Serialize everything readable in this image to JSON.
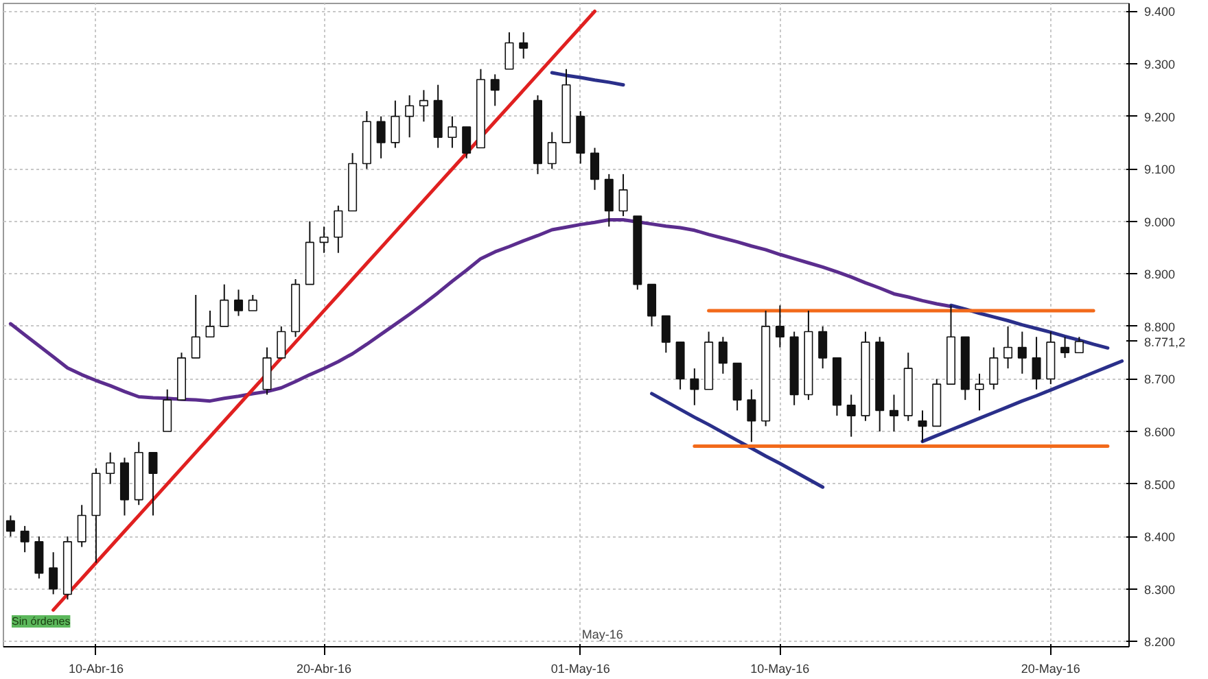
{
  "chart_data": {
    "type": "candlestick",
    "categories": [
      null,
      null,
      null,
      null,
      null,
      null,
      "10-Abr-16",
      null,
      null,
      null,
      null,
      null,
      null,
      null,
      null,
      null,
      null,
      null,
      null,
      null,
      null,
      null,
      "20-Abr-16",
      null,
      null,
      null,
      null,
      null,
      null,
      null,
      null,
      null,
      null,
      null,
      null,
      null,
      null,
      null,
      null,
      null,
      "01-May-16",
      null,
      null,
      null,
      null,
      null,
      null,
      null,
      null,
      null,
      null,
      null,
      null,
      null,
      "10-May-16",
      null,
      null,
      null,
      null,
      null,
      null,
      null,
      null,
      null,
      null,
      null,
      null,
      null,
      null,
      null,
      null,
      null,
      null,
      "20-May-16",
      null,
      null,
      null,
      null,
      null
    ],
    "ohlc": [
      [
        8430,
        8440,
        8400,
        8410
      ],
      [
        8410,
        8420,
        8370,
        8390
      ],
      [
        8390,
        8400,
        8320,
        8330
      ],
      [
        8340,
        8370,
        8290,
        8300
      ],
      [
        8290,
        8400,
        8280,
        8390
      ],
      [
        8390,
        8460,
        8380,
        8440
      ],
      [
        8440,
        8530,
        8350,
        8520
      ],
      [
        8520,
        8560,
        8500,
        8540
      ],
      [
        8540,
        8550,
        8440,
        8470
      ],
      [
        8470,
        8580,
        8460,
        8560
      ],
      [
        8560,
        8560,
        8440,
        8520
      ],
      [
        8600,
        8680,
        8600,
        8660
      ],
      [
        8660,
        8750,
        8660,
        8740
      ],
      [
        8740,
        8860,
        8740,
        8780
      ],
      [
        8780,
        8830,
        8780,
        8800
      ],
      [
        8800,
        8880,
        8800,
        8850
      ],
      [
        8850,
        8870,
        8820,
        8830
      ],
      [
        8830,
        8860,
        8830,
        8850
      ],
      [
        8680,
        8760,
        8670,
        8740
      ],
      [
        8740,
        8800,
        8740,
        8790
      ],
      [
        8790,
        8890,
        8780,
        8880
      ],
      [
        8880,
        9000,
        8880,
        8960
      ],
      [
        8960,
        8990,
        8940,
        8970
      ],
      [
        8970,
        9030,
        8940,
        9020
      ],
      [
        9020,
        9130,
        9020,
        9110
      ],
      [
        9110,
        9210,
        9100,
        9190
      ],
      [
        9190,
        9200,
        9120,
        9150
      ],
      [
        9150,
        9230,
        9140,
        9200
      ],
      [
        9200,
        9240,
        9160,
        9220
      ],
      [
        9220,
        9250,
        9190,
        9230
      ],
      [
        9230,
        9260,
        9140,
        9160
      ],
      [
        9160,
        9200,
        9140,
        9180
      ],
      [
        9180,
        9180,
        9120,
        9130
      ],
      [
        9140,
        9290,
        9140,
        9270
      ],
      [
        9270,
        9280,
        9220,
        9250
      ],
      [
        9290,
        9360,
        9290,
        9340
      ],
      [
        9340,
        9360,
        9310,
        9330
      ],
      [
        9230,
        9240,
        9090,
        9110
      ],
      [
        9110,
        9170,
        9100,
        9150
      ],
      [
        9150,
        9290,
        9150,
        9260
      ],
      [
        9200,
        9210,
        9110,
        9130
      ],
      [
        9130,
        9140,
        9060,
        9080
      ],
      [
        9080,
        9090,
        8990,
        9020
      ],
      [
        9020,
        9090,
        9010,
        9060
      ],
      [
        9010,
        9010,
        8870,
        8880
      ],
      [
        8880,
        8880,
        8800,
        8820
      ],
      [
        8820,
        8820,
        8750,
        8770
      ],
      [
        8770,
        8770,
        8680,
        8700
      ],
      [
        8700,
        8720,
        8650,
        8680
      ],
      [
        8680,
        8790,
        8680,
        8770
      ],
      [
        8770,
        8780,
        8710,
        8730
      ],
      [
        8730,
        8730,
        8640,
        8660
      ],
      [
        8660,
        8680,
        8580,
        8620
      ],
      [
        8620,
        8830,
        8610,
        8800
      ],
      [
        8800,
        8840,
        8760,
        8780
      ],
      [
        8780,
        8790,
        8650,
        8670
      ],
      [
        8670,
        8830,
        8660,
        8790
      ],
      [
        8790,
        8800,
        8720,
        8740
      ],
      [
        8740,
        8740,
        8630,
        8650
      ],
      [
        8650,
        8670,
        8590,
        8630
      ],
      [
        8630,
        8790,
        8620,
        8770
      ],
      [
        8770,
        8780,
        8600,
        8640
      ],
      [
        8640,
        8670,
        8600,
        8630
      ],
      [
        8630,
        8750,
        8620,
        8720
      ],
      [
        8620,
        8640,
        8580,
        8610
      ],
      [
        8610,
        8700,
        8610,
        8690
      ],
      [
        8690,
        8840,
        8690,
        8780
      ],
      [
        8780,
        8780,
        8660,
        8680
      ],
      [
        8680,
        8710,
        8640,
        8690
      ],
      [
        8690,
        8760,
        8680,
        8740
      ],
      [
        8740,
        8800,
        8720,
        8760
      ],
      [
        8760,
        8790,
        8710,
        8740
      ],
      [
        8740,
        8780,
        8680,
        8700
      ],
      [
        8700,
        8790,
        8690,
        8770
      ],
      [
        8760,
        8780,
        8740,
        8750
      ],
      [
        8750,
        8780,
        8750,
        8771.2
      ],
      null,
      null,
      null
    ],
    "series": [
      {
        "type": "line",
        "color": "#5b2d8e",
        "values": [
          8805,
          8784,
          8763,
          8742,
          8721,
          8708,
          8697,
          8687,
          8676,
          8666,
          8664,
          8663,
          8661,
          8660,
          8658,
          8663,
          8667,
          8672,
          8676,
          8683,
          8695,
          8708,
          8720,
          8733,
          8748,
          8766,
          8785,
          8804,
          8823,
          8843,
          8864,
          8886,
          8907,
          8929,
          8942,
          8952,
          8963,
          8973,
          8984,
          8989,
          8994,
          8998,
          9003,
          9003,
          8999,
          8995,
          8991,
          8988,
          8983,
          8975,
          8968,
          8961,
          8953,
          8946,
          8937,
          8929,
          8921,
          8913,
          8904,
          8894,
          8883,
          8873,
          8862,
          8856,
          8849,
          8843,
          8838,
          null,
          null,
          null,
          null,
          null,
          null,
          null,
          null,
          null,
          null,
          null,
          null
        ]
      },
      {
        "type": "line",
        "color": "#e02020",
        "values": [
          null,
          null,
          null,
          8260,
          8290,
          8320,
          8350,
          8380,
          8410,
          8440,
          8470,
          8500,
          8530,
          8560,
          8590,
          8620,
          8650,
          8680,
          8710,
          8740,
          8770,
          8800,
          8830,
          8860,
          8890,
          8920,
          8950,
          8980,
          9010,
          9040,
          9070,
          9100,
          9130,
          9160,
          9190,
          9220,
          9250,
          9280,
          9310,
          9340,
          9370,
          9400,
          null,
          null,
          null,
          null,
          null,
          null,
          null,
          null,
          null,
          null,
          null,
          null,
          null,
          null,
          null,
          null,
          null,
          null,
          null,
          null,
          null,
          null,
          null,
          null,
          null,
          null,
          null,
          null,
          null,
          null,
          null,
          null,
          null,
          null,
          null,
          null,
          null
        ]
      },
      {
        "type": "line",
        "color": "#2a2f8a",
        "values": [
          null,
          null,
          null,
          null,
          null,
          null,
          null,
          null,
          null,
          null,
          null,
          null,
          null,
          null,
          null,
          null,
          null,
          null,
          null,
          null,
          null,
          null,
          null,
          null,
          null,
          null,
          null,
          null,
          null,
          null,
          null,
          null,
          null,
          null,
          null,
          null,
          null,
          null,
          9283,
          9278,
          9274,
          9269,
          9265,
          9260,
          null,
          null,
          null,
          null,
          null,
          null,
          null,
          null,
          null,
          null,
          null,
          null,
          null,
          null,
          null,
          null,
          null,
          null,
          null,
          null,
          null,
          null,
          null,
          null,
          null,
          null,
          null,
          null,
          null,
          null,
          null,
          null,
          null,
          null,
          null
        ]
      },
      {
        "type": "line",
        "color": "#2a2f8a",
        "values": [
          null,
          null,
          null,
          null,
          null,
          null,
          null,
          null,
          null,
          null,
          null,
          null,
          null,
          null,
          null,
          null,
          null,
          null,
          null,
          null,
          null,
          null,
          null,
          null,
          null,
          null,
          null,
          null,
          null,
          null,
          null,
          null,
          null,
          null,
          null,
          null,
          null,
          null,
          null,
          null,
          null,
          null,
          null,
          null,
          null,
          8672,
          8657,
          8642,
          8627,
          8613,
          8598,
          8583,
          8568,
          8553,
          8539,
          8524,
          8509,
          8494,
          null,
          null,
          null,
          null,
          null,
          null,
          null,
          null,
          null,
          null,
          null,
          null,
          null,
          null,
          null,
          null,
          null,
          null,
          null,
          null,
          null
        ]
      },
      {
        "type": "line",
        "color": "#2a2f8a",
        "values": [
          null,
          null,
          null,
          null,
          null,
          null,
          null,
          null,
          null,
          null,
          null,
          null,
          null,
          null,
          null,
          null,
          null,
          null,
          null,
          null,
          null,
          null,
          null,
          null,
          null,
          null,
          null,
          null,
          null,
          null,
          null,
          null,
          null,
          null,
          null,
          null,
          null,
          null,
          null,
          null,
          null,
          null,
          null,
          null,
          null,
          null,
          null,
          null,
          null,
          null,
          null,
          null,
          null,
          null,
          null,
          null,
          null,
          null,
          null,
          null,
          null,
          null,
          null,
          null,
          null,
          null,
          8840,
          8833,
          8825,
          8818,
          8811,
          8803,
          8796,
          8789,
          8781,
          8774,
          8766,
          8759,
          null
        ]
      },
      {
        "type": "line",
        "color": "#2a2f8a",
        "values": [
          null,
          null,
          null,
          null,
          null,
          null,
          null,
          null,
          null,
          null,
          null,
          null,
          null,
          null,
          null,
          null,
          null,
          null,
          null,
          null,
          null,
          null,
          null,
          null,
          null,
          null,
          null,
          null,
          null,
          null,
          null,
          null,
          null,
          null,
          null,
          null,
          null,
          null,
          null,
          null,
          null,
          null,
          null,
          null,
          null,
          null,
          null,
          null,
          null,
          null,
          null,
          null,
          null,
          null,
          null,
          null,
          null,
          null,
          null,
          null,
          null,
          null,
          null,
          null,
          8581,
          8592,
          8603,
          8614,
          8625,
          8636,
          8647,
          8658,
          8668,
          8679,
          8690,
          8701,
          8712,
          8723,
          8734
        ]
      },
      {
        "type": "line",
        "color": "#f26a1b",
        "values": [
          null,
          null,
          null,
          null,
          null,
          null,
          null,
          null,
          null,
          null,
          null,
          null,
          null,
          null,
          null,
          null,
          null,
          null,
          null,
          null,
          null,
          null,
          null,
          null,
          null,
          null,
          null,
          null,
          null,
          null,
          null,
          null,
          null,
          null,
          null,
          null,
          null,
          null,
          null,
          null,
          null,
          null,
          null,
          null,
          null,
          null,
          null,
          null,
          null,
          8830,
          8830,
          8830,
          8830,
          8830,
          8830,
          8830,
          8830,
          8830,
          8830,
          8830,
          8830,
          8830,
          8830,
          8830,
          8830,
          8830,
          8830,
          8830,
          8830,
          8830,
          8830,
          8830,
          8830,
          8830,
          8830,
          8830,
          8830,
          null,
          null
        ]
      },
      {
        "type": "line",
        "color": "#f26a1b",
        "values": [
          null,
          null,
          null,
          null,
          null,
          null,
          null,
          null,
          null,
          null,
          null,
          null,
          null,
          null,
          null,
          null,
          null,
          null,
          null,
          null,
          null,
          null,
          null,
          null,
          null,
          null,
          null,
          null,
          null,
          null,
          null,
          null,
          null,
          null,
          null,
          null,
          null,
          null,
          null,
          null,
          null,
          null,
          null,
          null,
          null,
          null,
          null,
          null,
          8572,
          8572,
          8572,
          8572,
          8572,
          8572,
          8572,
          8572,
          8572,
          8572,
          8572,
          8572,
          8572,
          8572,
          8572,
          8572,
          8572,
          8572,
          8572,
          8572,
          8572,
          8572,
          8572,
          8572,
          8572,
          8572,
          8572,
          8572,
          8572,
          8572,
          null
        ]
      }
    ],
    "ylim": [
      8190,
      9415
    ],
    "yticks": [
      {
        "value": 8200,
        "label": "8.200"
      },
      {
        "value": 8300,
        "label": "8.300"
      },
      {
        "value": 8400,
        "label": "8.400"
      },
      {
        "value": 8500,
        "label": "8.500"
      },
      {
        "value": 8600,
        "label": "8.600"
      },
      {
        "value": 8700,
        "label": "8.700"
      },
      {
        "value": 8771.2,
        "label": "8.771,2"
      },
      {
        "value": 8800,
        "label": "8.800"
      },
      {
        "value": 8900,
        "label": "8.900"
      },
      {
        "value": 9000,
        "label": "9.000"
      },
      {
        "value": 9100,
        "label": "9.100"
      },
      {
        "value": 9200,
        "label": "9.200"
      },
      {
        "value": 9300,
        "label": "9.300"
      },
      {
        "value": 9400,
        "label": "9.400"
      }
    ],
    "annotations": [
      "Sin órdenes",
      "May-16"
    ],
    "grid": true,
    "line_style": "solid",
    "marker": "none"
  }
}
